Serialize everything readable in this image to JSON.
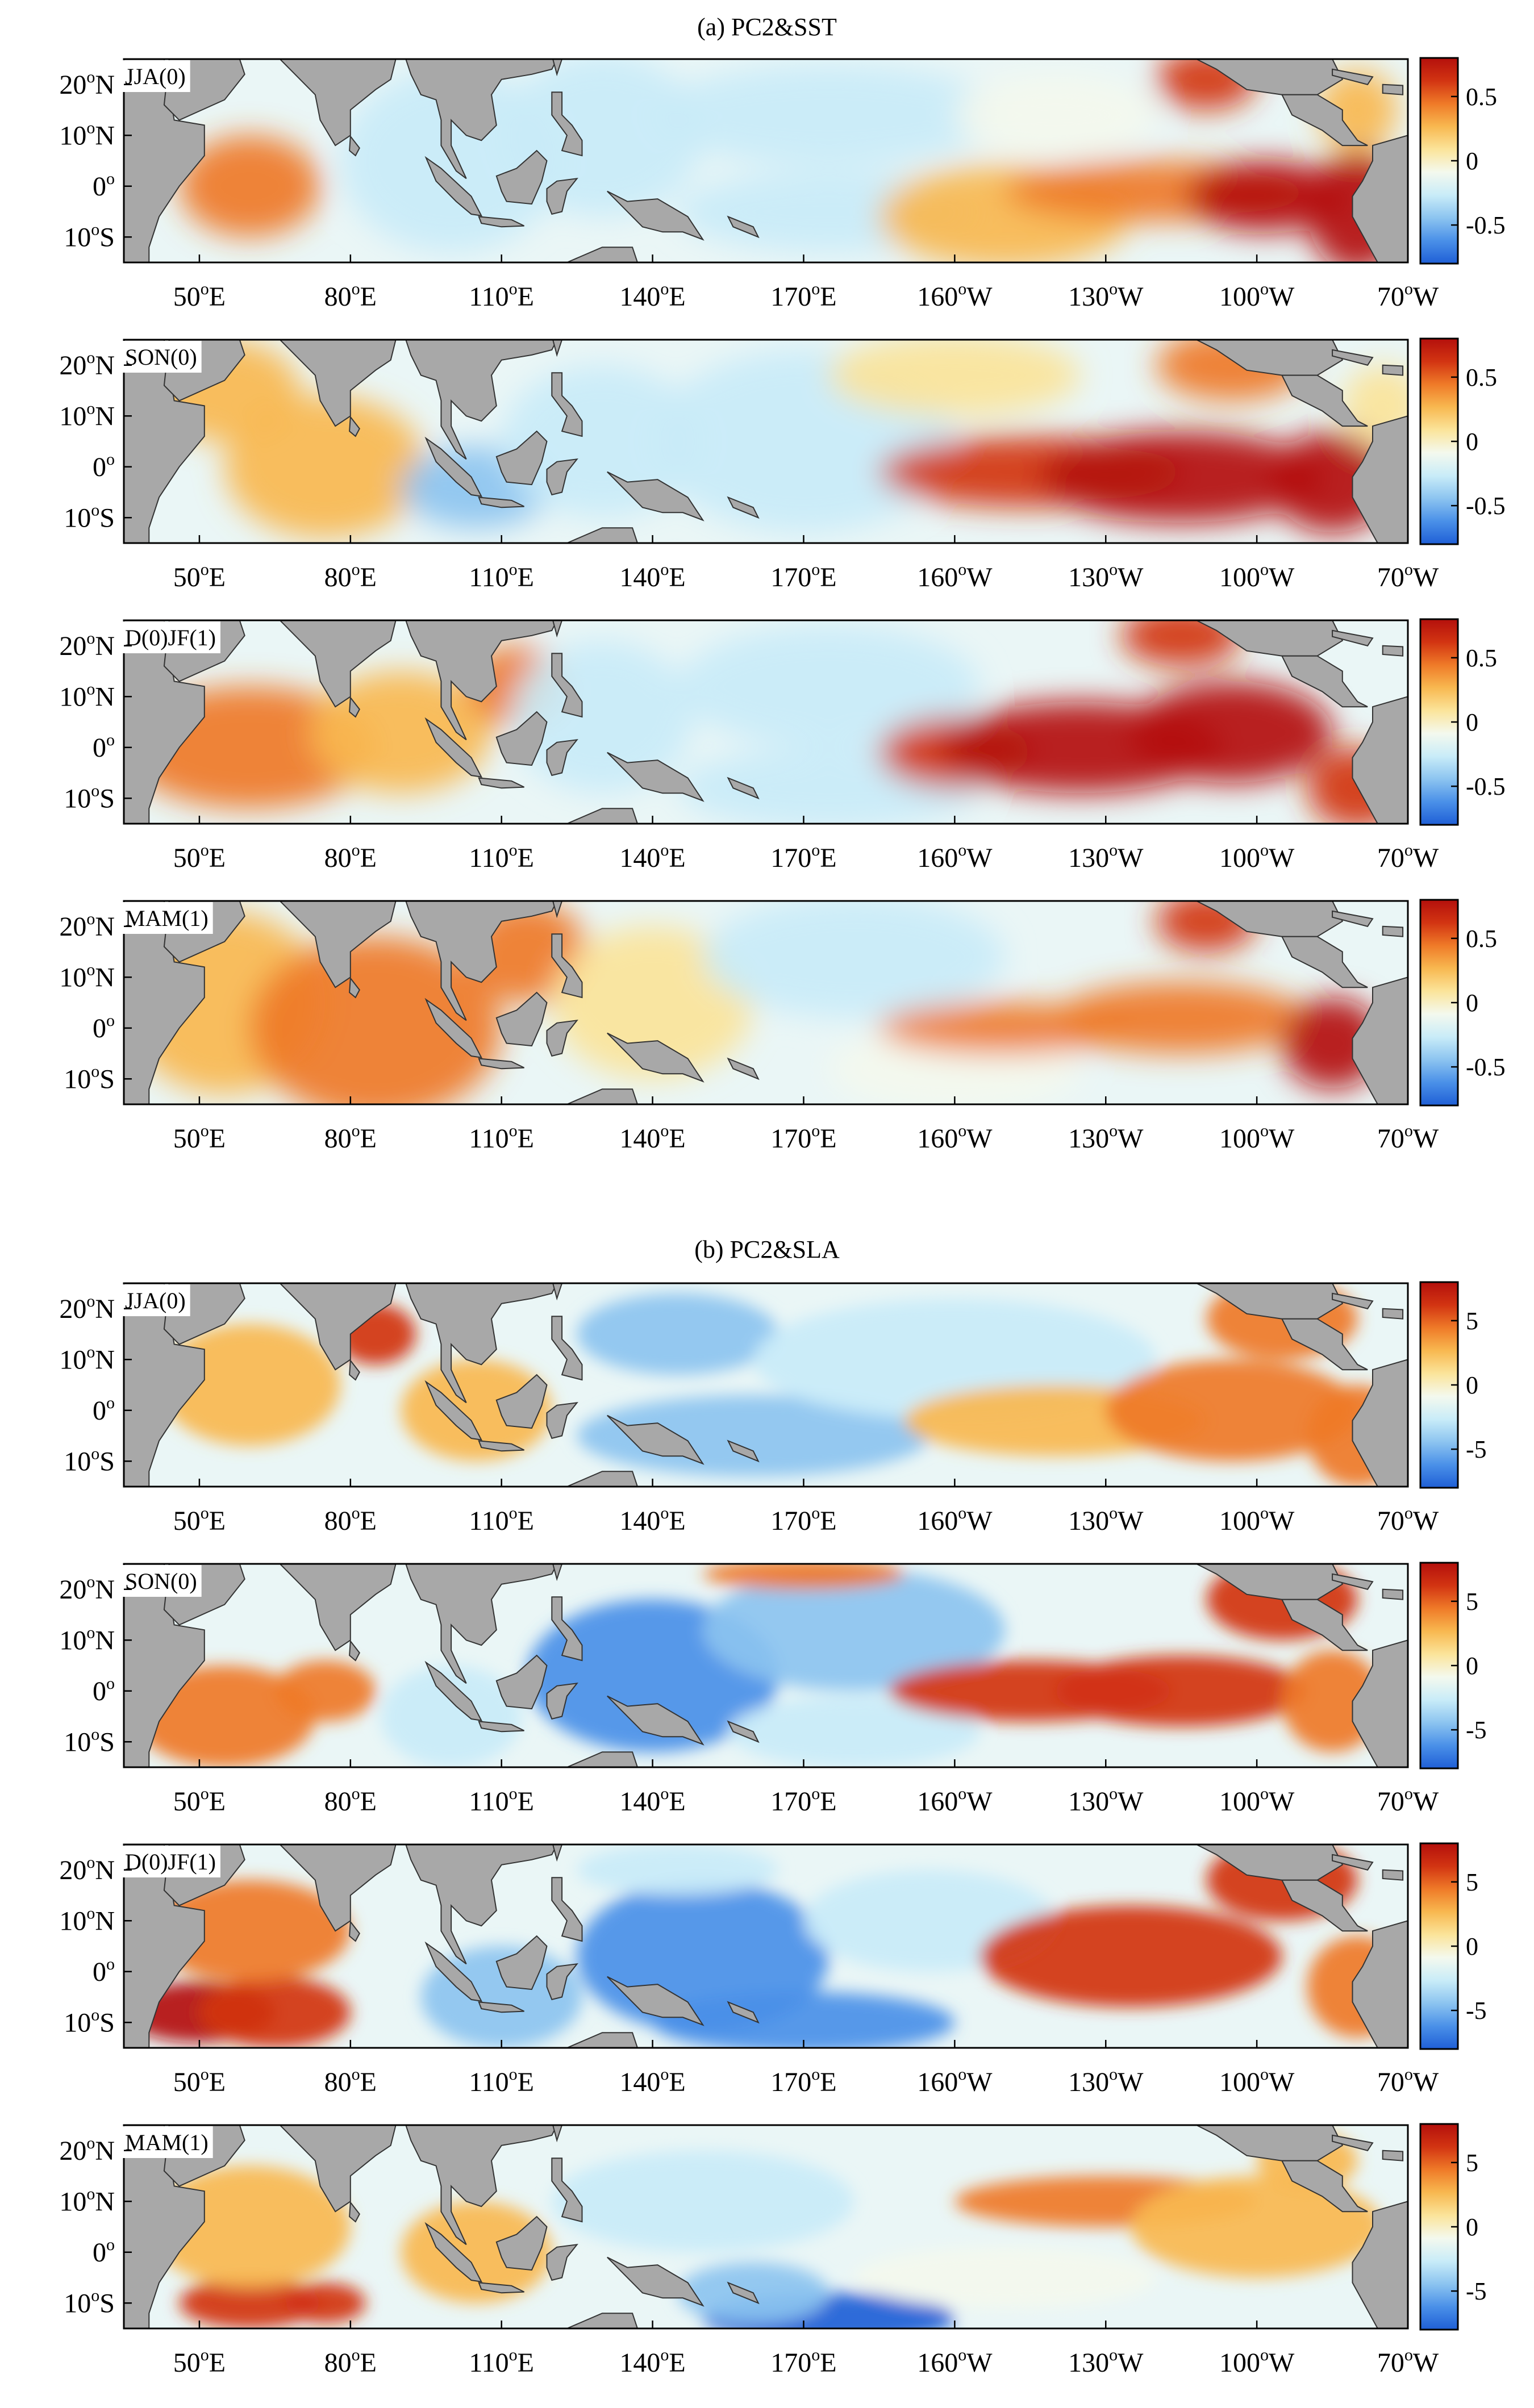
{
  "figure": {
    "groups": [
      {
        "title": "(a)  PC2&SST",
        "variable": "SST",
        "colorbar": {
          "range": [
            -0.8,
            0.8
          ],
          "ticks": [
            {
              "value": 0.5,
              "label": "0.5"
            },
            {
              "value": 0,
              "label": "0"
            },
            {
              "value": -0.5,
              "label": "-0.5"
            }
          ]
        },
        "panels": [
          {
            "label": "JJA(0)"
          },
          {
            "label": "SON(0)"
          },
          {
            "label": "D(0)JF(1)"
          },
          {
            "label": "MAM(1)"
          }
        ]
      },
      {
        "title": "(b)  PC2&SLA",
        "variable": "SLA",
        "colorbar": {
          "range": [
            -8,
            8
          ],
          "ticks": [
            {
              "value": 5,
              "label": "5"
            },
            {
              "value": 0,
              "label": "0"
            },
            {
              "value": -5,
              "label": "-5"
            }
          ]
        },
        "panels": [
          {
            "label": "JJA(0)"
          },
          {
            "label": "SON(0)"
          },
          {
            "label": "D(0)JF(1)"
          },
          {
            "label": "MAM(1)"
          }
        ]
      }
    ],
    "lon_range": [
      35,
      290
    ],
    "lat_range": [
      -15,
      25
    ],
    "lon_ticks": [
      {
        "num": "50",
        "sup": "o",
        "hemi": "E",
        "lon": 50
      },
      {
        "num": "80",
        "sup": "o",
        "hemi": "E",
        "lon": 80
      },
      {
        "num": "110",
        "sup": "o",
        "hemi": "E",
        "lon": 110
      },
      {
        "num": "140",
        "sup": "o",
        "hemi": "E",
        "lon": 140
      },
      {
        "num": "170",
        "sup": "o",
        "hemi": "E",
        "lon": 170
      },
      {
        "num": "160",
        "sup": "o",
        "hemi": "W",
        "lon": 200
      },
      {
        "num": "130",
        "sup": "o",
        "hemi": "W",
        "lon": 230
      },
      {
        "num": "100",
        "sup": "o",
        "hemi": "W",
        "lon": 260
      },
      {
        "num": "70",
        "sup": "o",
        "hemi": "W",
        "lon": 290
      }
    ],
    "lat_ticks": [
      {
        "num": "20",
        "sup": "o",
        "hemi": "N",
        "lat": 20
      },
      {
        "num": "10",
        "sup": "o",
        "hemi": "N",
        "lat": 10
      },
      {
        "num": "0",
        "sup": "o",
        "hemi": "",
        "lat": 0
      },
      {
        "num": "10",
        "sup": "o",
        "hemi": "S",
        "lat": -10
      }
    ],
    "colors": {
      "land": "#a8a8a8",
      "coast": "#333333",
      "colormap": [
        "#1f5fd6",
        "#4a90e8",
        "#8cc4f0",
        "#c9ecf8",
        "#f4f9ee",
        "#fbe49a",
        "#f8b850",
        "#ef7a28",
        "#d23412",
        "#b4100c"
      ]
    }
  }
}
